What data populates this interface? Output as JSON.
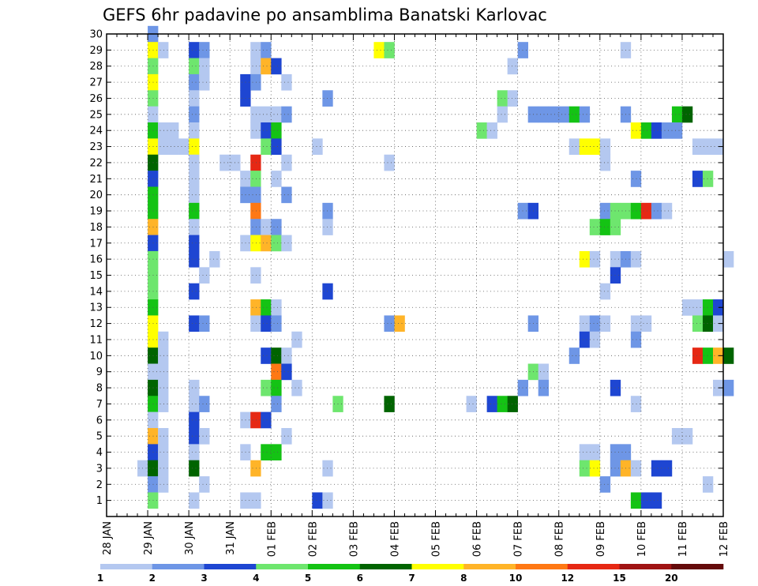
{
  "chart_data": {
    "type": "heatmap",
    "title": "GEFS 6hr padavine po ansamblima Banatski Karlovac",
    "x_tick_labels": [
      "28 JAN",
      "29 JAN",
      "30 JAN",
      "31 JAN",
      "01 FEB",
      "02 FEB",
      "03 FEB",
      "04 FEB",
      "05 FEB",
      "06 FEB",
      "07 FEB",
      "08 FEB",
      "09 FEB",
      "10 FEB",
      "11 FEB",
      "12 FEB"
    ],
    "y_tick_labels": [
      "1",
      "2",
      "3",
      "4",
      "5",
      "6",
      "7",
      "8",
      "9",
      "10",
      "11",
      "12",
      "13",
      "14",
      "15",
      "16",
      "17",
      "18",
      "19",
      "20",
      "21",
      "22",
      "23",
      "24",
      "25",
      "26",
      "27",
      "28",
      "29",
      "30"
    ],
    "ylim": [
      0,
      30
    ],
    "x_range_days": [
      0,
      15
    ],
    "steps_per_day": 4,
    "grid": true,
    "legend": {
      "placement": "bottom",
      "colors": [
        "#b4c8f0",
        "#6e96e6",
        "#1e46d2",
        "#6ee66e",
        "#14c314",
        "#006400",
        "#ffff00",
        "#ffb428",
        "#ff7814",
        "#e62814",
        "#a01414",
        "#640a0a"
      ],
      "tick_labels": [
        "1",
        "2",
        "3",
        "4",
        "5",
        "6",
        "7",
        "8",
        "10",
        "12",
        "15",
        "20"
      ]
    },
    "cells_note": "x = 6-hour step index from 28 JAN 00z, y = ensemble member, c = precipitation class index into legend colors",
    "cells": [
      {
        "x": 4,
        "y": 30,
        "c": 1
      },
      {
        "x": 4,
        "y": 29,
        "c": 6
      },
      {
        "x": 5,
        "y": 29,
        "c": 0
      },
      {
        "x": 8,
        "y": 29,
        "c": 2
      },
      {
        "x": 9,
        "y": 29,
        "c": 1
      },
      {
        "x": 14,
        "y": 29,
        "c": 0
      },
      {
        "x": 15,
        "y": 29,
        "c": 1
      },
      {
        "x": 26,
        "y": 29,
        "c": 6
      },
      {
        "x": 27,
        "y": 29,
        "c": 3
      },
      {
        "x": 40,
        "y": 29,
        "c": 1
      },
      {
        "x": 50,
        "y": 29,
        "c": 0
      },
      {
        "x": 4,
        "y": 28,
        "c": 3
      },
      {
        "x": 8,
        "y": 28,
        "c": 3
      },
      {
        "x": 9,
        "y": 28,
        "c": 0
      },
      {
        "x": 14,
        "y": 28,
        "c": 0
      },
      {
        "x": 15,
        "y": 28,
        "c": 7
      },
      {
        "x": 16,
        "y": 28,
        "c": 2
      },
      {
        "x": 39,
        "y": 28,
        "c": 0
      },
      {
        "x": 4,
        "y": 27,
        "c": 6
      },
      {
        "x": 8,
        "y": 27,
        "c": 1
      },
      {
        "x": 9,
        "y": 27,
        "c": 0
      },
      {
        "x": 13,
        "y": 27,
        "c": 2
      },
      {
        "x": 14,
        "y": 27,
        "c": 1
      },
      {
        "x": 17,
        "y": 27,
        "c": 0
      },
      {
        "x": 4,
        "y": 26,
        "c": 3
      },
      {
        "x": 8,
        "y": 26,
        "c": 0
      },
      {
        "x": 13,
        "y": 26,
        "c": 2
      },
      {
        "x": 21,
        "y": 26,
        "c": 1
      },
      {
        "x": 38,
        "y": 26,
        "c": 3
      },
      {
        "x": 39,
        "y": 26,
        "c": 0
      },
      {
        "x": 4,
        "y": 25,
        "c": 0
      },
      {
        "x": 8,
        "y": 25,
        "c": 1
      },
      {
        "x": 14,
        "y": 25,
        "c": 0
      },
      {
        "x": 15,
        "y": 25,
        "c": 0
      },
      {
        "x": 16,
        "y": 25,
        "c": 0
      },
      {
        "x": 17,
        "y": 25,
        "c": 1
      },
      {
        "x": 38,
        "y": 25,
        "c": 0
      },
      {
        "x": 41,
        "y": 25,
        "c": 1
      },
      {
        "x": 42,
        "y": 25,
        "c": 1
      },
      {
        "x": 43,
        "y": 25,
        "c": 1
      },
      {
        "x": 44,
        "y": 25,
        "c": 1
      },
      {
        "x": 45,
        "y": 25,
        "c": 4
      },
      {
        "x": 46,
        "y": 25,
        "c": 1
      },
      {
        "x": 50,
        "y": 25,
        "c": 1
      },
      {
        "x": 55,
        "y": 25,
        "c": 4
      },
      {
        "x": 56,
        "y": 25,
        "c": 5
      },
      {
        "x": 4,
        "y": 24,
        "c": 4
      },
      {
        "x": 5,
        "y": 24,
        "c": 0
      },
      {
        "x": 6,
        "y": 24,
        "c": 0
      },
      {
        "x": 8,
        "y": 24,
        "c": 0
      },
      {
        "x": 14,
        "y": 24,
        "c": 0
      },
      {
        "x": 15,
        "y": 24,
        "c": 2
      },
      {
        "x": 16,
        "y": 24,
        "c": 4
      },
      {
        "x": 36,
        "y": 24,
        "c": 3
      },
      {
        "x": 37,
        "y": 24,
        "c": 0
      },
      {
        "x": 51,
        "y": 24,
        "c": 6
      },
      {
        "x": 52,
        "y": 24,
        "c": 4
      },
      {
        "x": 53,
        "y": 24,
        "c": 2
      },
      {
        "x": 54,
        "y": 24,
        "c": 1
      },
      {
        "x": 55,
        "y": 24,
        "c": 1
      },
      {
        "x": 4,
        "y": 23,
        "c": 6
      },
      {
        "x": 5,
        "y": 23,
        "c": 0
      },
      {
        "x": 6,
        "y": 23,
        "c": 0
      },
      {
        "x": 7,
        "y": 23,
        "c": 0
      },
      {
        "x": 8,
        "y": 23,
        "c": 6
      },
      {
        "x": 15,
        "y": 23,
        "c": 3
      },
      {
        "x": 16,
        "y": 23,
        "c": 2
      },
      {
        "x": 20,
        "y": 23,
        "c": 0
      },
      {
        "x": 45,
        "y": 23,
        "c": 0
      },
      {
        "x": 46,
        "y": 23,
        "c": 6
      },
      {
        "x": 47,
        "y": 23,
        "c": 6
      },
      {
        "x": 48,
        "y": 23,
        "c": 0
      },
      {
        "x": 57,
        "y": 23,
        "c": 0
      },
      {
        "x": 58,
        "y": 23,
        "c": 0
      },
      {
        "x": 59,
        "y": 23,
        "c": 0
      },
      {
        "x": 4,
        "y": 22,
        "c": 5
      },
      {
        "x": 8,
        "y": 22,
        "c": 0
      },
      {
        "x": 11,
        "y": 22,
        "c": 0
      },
      {
        "x": 12,
        "y": 22,
        "c": 0
      },
      {
        "x": 14,
        "y": 22,
        "c": 9
      },
      {
        "x": 17,
        "y": 22,
        "c": 0
      },
      {
        "x": 27,
        "y": 22,
        "c": 0
      },
      {
        "x": 48,
        "y": 22,
        "c": 0
      },
      {
        "x": 4,
        "y": 21,
        "c": 2
      },
      {
        "x": 8,
        "y": 21,
        "c": 0
      },
      {
        "x": 13,
        "y": 21,
        "c": 0
      },
      {
        "x": 14,
        "y": 21,
        "c": 3
      },
      {
        "x": 16,
        "y": 21,
        "c": 0
      },
      {
        "x": 51,
        "y": 21,
        "c": 1
      },
      {
        "x": 57,
        "y": 21,
        "c": 2
      },
      {
        "x": 58,
        "y": 21,
        "c": 3
      },
      {
        "x": 4,
        "y": 20,
        "c": 4
      },
      {
        "x": 8,
        "y": 20,
        "c": 0
      },
      {
        "x": 13,
        "y": 20,
        "c": 1
      },
      {
        "x": 14,
        "y": 20,
        "c": 1
      },
      {
        "x": 17,
        "y": 20,
        "c": 1
      },
      {
        "x": 4,
        "y": 19,
        "c": 4
      },
      {
        "x": 8,
        "y": 19,
        "c": 4
      },
      {
        "x": 14,
        "y": 19,
        "c": 8
      },
      {
        "x": 21,
        "y": 19,
        "c": 1
      },
      {
        "x": 40,
        "y": 19,
        "c": 1
      },
      {
        "x": 41,
        "y": 19,
        "c": 2
      },
      {
        "x": 48,
        "y": 19,
        "c": 1
      },
      {
        "x": 49,
        "y": 19,
        "c": 3
      },
      {
        "x": 50,
        "y": 19,
        "c": 3
      },
      {
        "x": 51,
        "y": 19,
        "c": 4
      },
      {
        "x": 52,
        "y": 19,
        "c": 9
      },
      {
        "x": 53,
        "y": 19,
        "c": 1
      },
      {
        "x": 54,
        "y": 19,
        "c": 0
      },
      {
        "x": 4,
        "y": 18,
        "c": 7
      },
      {
        "x": 8,
        "y": 18,
        "c": 0
      },
      {
        "x": 14,
        "y": 18,
        "c": 1
      },
      {
        "x": 15,
        "y": 18,
        "c": 0
      },
      {
        "x": 16,
        "y": 18,
        "c": 1
      },
      {
        "x": 21,
        "y": 18,
        "c": 0
      },
      {
        "x": 47,
        "y": 18,
        "c": 3
      },
      {
        "x": 48,
        "y": 18,
        "c": 4
      },
      {
        "x": 49,
        "y": 18,
        "c": 3
      },
      {
        "x": 4,
        "y": 17,
        "c": 2
      },
      {
        "x": 8,
        "y": 17,
        "c": 2
      },
      {
        "x": 13,
        "y": 17,
        "c": 0
      },
      {
        "x": 14,
        "y": 17,
        "c": 6
      },
      {
        "x": 15,
        "y": 17,
        "c": 7
      },
      {
        "x": 16,
        "y": 17,
        "c": 3
      },
      {
        "x": 17,
        "y": 17,
        "c": 0
      },
      {
        "x": 4,
        "y": 16,
        "c": 3
      },
      {
        "x": 8,
        "y": 16,
        "c": 2
      },
      {
        "x": 10,
        "y": 16,
        "c": 0
      },
      {
        "x": 46,
        "y": 16,
        "c": 6
      },
      {
        "x": 47,
        "y": 16,
        "c": 0
      },
      {
        "x": 49,
        "y": 16,
        "c": 0
      },
      {
        "x": 50,
        "y": 16,
        "c": 1
      },
      {
        "x": 51,
        "y": 16,
        "c": 0
      },
      {
        "x": 60,
        "y": 16,
        "c": 0
      },
      {
        "x": 4,
        "y": 15,
        "c": 3
      },
      {
        "x": 9,
        "y": 15,
        "c": 0
      },
      {
        "x": 14,
        "y": 15,
        "c": 0
      },
      {
        "x": 49,
        "y": 15,
        "c": 2
      },
      {
        "x": 4,
        "y": 14,
        "c": 3
      },
      {
        "x": 8,
        "y": 14,
        "c": 2
      },
      {
        "x": 21,
        "y": 14,
        "c": 2
      },
      {
        "x": 48,
        "y": 14,
        "c": 0
      },
      {
        "x": 4,
        "y": 13,
        "c": 4
      },
      {
        "x": 14,
        "y": 13,
        "c": 7
      },
      {
        "x": 15,
        "y": 13,
        "c": 4
      },
      {
        "x": 16,
        "y": 13,
        "c": 0
      },
      {
        "x": 56,
        "y": 13,
        "c": 0
      },
      {
        "x": 57,
        "y": 13,
        "c": 0
      },
      {
        "x": 58,
        "y": 13,
        "c": 4
      },
      {
        "x": 59,
        "y": 13,
        "c": 2
      },
      {
        "x": 4,
        "y": 12,
        "c": 6
      },
      {
        "x": 8,
        "y": 12,
        "c": 2
      },
      {
        "x": 9,
        "y": 12,
        "c": 1
      },
      {
        "x": 14,
        "y": 12,
        "c": 0
      },
      {
        "x": 15,
        "y": 12,
        "c": 2
      },
      {
        "x": 16,
        "y": 12,
        "c": 1
      },
      {
        "x": 27,
        "y": 12,
        "c": 1
      },
      {
        "x": 28,
        "y": 12,
        "c": 7
      },
      {
        "x": 41,
        "y": 12,
        "c": 1
      },
      {
        "x": 46,
        "y": 12,
        "c": 0
      },
      {
        "x": 47,
        "y": 12,
        "c": 1
      },
      {
        "x": 48,
        "y": 12,
        "c": 0
      },
      {
        "x": 51,
        "y": 12,
        "c": 0
      },
      {
        "x": 52,
        "y": 12,
        "c": 0
      },
      {
        "x": 57,
        "y": 12,
        "c": 3
      },
      {
        "x": 58,
        "y": 12,
        "c": 5
      },
      {
        "x": 59,
        "y": 12,
        "c": 0
      },
      {
        "x": 4,
        "y": 11,
        "c": 6
      },
      {
        "x": 5,
        "y": 11,
        "c": 0
      },
      {
        "x": 18,
        "y": 11,
        "c": 0
      },
      {
        "x": 46,
        "y": 11,
        "c": 2
      },
      {
        "x": 47,
        "y": 11,
        "c": 0
      },
      {
        "x": 51,
        "y": 11,
        "c": 1
      },
      {
        "x": 4,
        "y": 10,
        "c": 5
      },
      {
        "x": 5,
        "y": 10,
        "c": 0
      },
      {
        "x": 15,
        "y": 10,
        "c": 2
      },
      {
        "x": 16,
        "y": 10,
        "c": 5
      },
      {
        "x": 17,
        "y": 10,
        "c": 0
      },
      {
        "x": 45,
        "y": 10,
        "c": 1
      },
      {
        "x": 57,
        "y": 10,
        "c": 9
      },
      {
        "x": 58,
        "y": 10,
        "c": 4
      },
      {
        "x": 59,
        "y": 10,
        "c": 7
      },
      {
        "x": 60,
        "y": 10,
        "c": 5
      },
      {
        "x": 4,
        "y": 9,
        "c": 0
      },
      {
        "x": 5,
        "y": 9,
        "c": 0
      },
      {
        "x": 16,
        "y": 9,
        "c": 8
      },
      {
        "x": 17,
        "y": 9,
        "c": 2
      },
      {
        "x": 41,
        "y": 9,
        "c": 3
      },
      {
        "x": 42,
        "y": 9,
        "c": 0
      },
      {
        "x": 4,
        "y": 8,
        "c": 5
      },
      {
        "x": 5,
        "y": 8,
        "c": 0
      },
      {
        "x": 8,
        "y": 8,
        "c": 0
      },
      {
        "x": 15,
        "y": 8,
        "c": 3
      },
      {
        "x": 16,
        "y": 8,
        "c": 4
      },
      {
        "x": 18,
        "y": 8,
        "c": 0
      },
      {
        "x": 40,
        "y": 8,
        "c": 1
      },
      {
        "x": 42,
        "y": 8,
        "c": 1
      },
      {
        "x": 49,
        "y": 8,
        "c": 2
      },
      {
        "x": 59,
        "y": 8,
        "c": 0
      },
      {
        "x": 60,
        "y": 8,
        "c": 1
      },
      {
        "x": 4,
        "y": 7,
        "c": 4
      },
      {
        "x": 5,
        "y": 7,
        "c": 0
      },
      {
        "x": 8,
        "y": 7,
        "c": 0
      },
      {
        "x": 9,
        "y": 7,
        "c": 1
      },
      {
        "x": 16,
        "y": 7,
        "c": 1
      },
      {
        "x": 22,
        "y": 7,
        "c": 3
      },
      {
        "x": 27,
        "y": 7,
        "c": 5
      },
      {
        "x": 35,
        "y": 7,
        "c": 0
      },
      {
        "x": 37,
        "y": 7,
        "c": 2
      },
      {
        "x": 38,
        "y": 7,
        "c": 4
      },
      {
        "x": 39,
        "y": 7,
        "c": 5
      },
      {
        "x": 51,
        "y": 7,
        "c": 0
      },
      {
        "x": 4,
        "y": 6,
        "c": 0
      },
      {
        "x": 8,
        "y": 6,
        "c": 2
      },
      {
        "x": 13,
        "y": 6,
        "c": 0
      },
      {
        "x": 14,
        "y": 6,
        "c": 9
      },
      {
        "x": 15,
        "y": 6,
        "c": 2
      },
      {
        "x": 4,
        "y": 5,
        "c": 7
      },
      {
        "x": 5,
        "y": 5,
        "c": 0
      },
      {
        "x": 8,
        "y": 5,
        "c": 2
      },
      {
        "x": 9,
        "y": 5,
        "c": 0
      },
      {
        "x": 17,
        "y": 5,
        "c": 0
      },
      {
        "x": 55,
        "y": 5,
        "c": 0
      },
      {
        "x": 56,
        "y": 5,
        "c": 0
      },
      {
        "x": 4,
        "y": 4,
        "c": 2
      },
      {
        "x": 5,
        "y": 4,
        "c": 0
      },
      {
        "x": 8,
        "y": 4,
        "c": 0
      },
      {
        "x": 13,
        "y": 4,
        "c": 0
      },
      {
        "x": 15,
        "y": 4,
        "c": 4
      },
      {
        "x": 16,
        "y": 4,
        "c": 4
      },
      {
        "x": 46,
        "y": 4,
        "c": 0
      },
      {
        "x": 47,
        "y": 4,
        "c": 0
      },
      {
        "x": 49,
        "y": 4,
        "c": 1
      },
      {
        "x": 50,
        "y": 4,
        "c": 1
      },
      {
        "x": 3,
        "y": 3,
        "c": 0
      },
      {
        "x": 4,
        "y": 3,
        "c": 5
      },
      {
        "x": 5,
        "y": 3,
        "c": 0
      },
      {
        "x": 8,
        "y": 3,
        "c": 5
      },
      {
        "x": 14,
        "y": 3,
        "c": 7
      },
      {
        "x": 21,
        "y": 3,
        "c": 0
      },
      {
        "x": 46,
        "y": 3,
        "c": 3
      },
      {
        "x": 47,
        "y": 3,
        "c": 6
      },
      {
        "x": 49,
        "y": 3,
        "c": 1
      },
      {
        "x": 50,
        "y": 3,
        "c": 7
      },
      {
        "x": 51,
        "y": 3,
        "c": 0
      },
      {
        "x": 53,
        "y": 3,
        "c": 2
      },
      {
        "x": 54,
        "y": 3,
        "c": 2
      },
      {
        "x": 4,
        "y": 2,
        "c": 1
      },
      {
        "x": 5,
        "y": 2,
        "c": 0
      },
      {
        "x": 9,
        "y": 2,
        "c": 0
      },
      {
        "x": 48,
        "y": 2,
        "c": 1
      },
      {
        "x": 58,
        "y": 2,
        "c": 0
      },
      {
        "x": 4,
        "y": 1,
        "c": 3
      },
      {
        "x": 8,
        "y": 1,
        "c": 0
      },
      {
        "x": 13,
        "y": 1,
        "c": 0
      },
      {
        "x": 14,
        "y": 1,
        "c": 0
      },
      {
        "x": 20,
        "y": 1,
        "c": 2
      },
      {
        "x": 21,
        "y": 1,
        "c": 0
      },
      {
        "x": 51,
        "y": 1,
        "c": 4
      },
      {
        "x": 52,
        "y": 1,
        "c": 2
      },
      {
        "x": 53,
        "y": 1,
        "c": 2
      }
    ]
  }
}
